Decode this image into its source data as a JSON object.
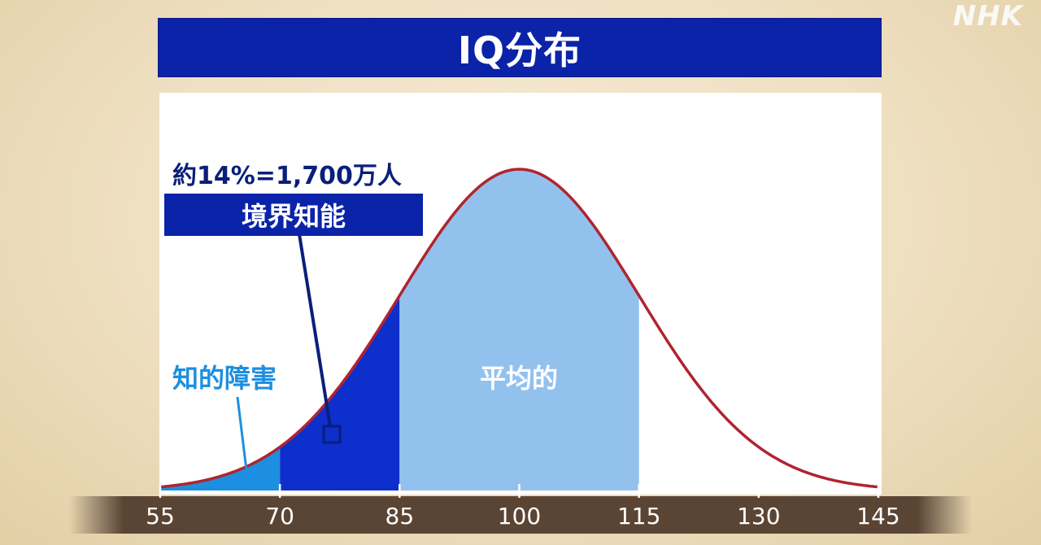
{
  "watermark": "NHK",
  "chart_data": {
    "type": "area",
    "title": "IQ分布",
    "x_ticks": [
      55,
      70,
      85,
      100,
      115,
      130,
      145
    ],
    "xlim": [
      55,
      145
    ],
    "distribution": {
      "mean": 100,
      "sd": 15
    },
    "regions": [
      {
        "label": "知的障害",
        "from": 55,
        "to": 70,
        "color": "#1d8fe0"
      },
      {
        "label": "境界知能",
        "from": 70,
        "to": 85,
        "color": "#0d2fcc",
        "annotation": "約14%=1,700万人"
      },
      {
        "label": "平均的",
        "from": 85,
        "to": 115,
        "color": "#92c1ee"
      }
    ],
    "curve_color": "#b0242f",
    "grid": false
  }
}
